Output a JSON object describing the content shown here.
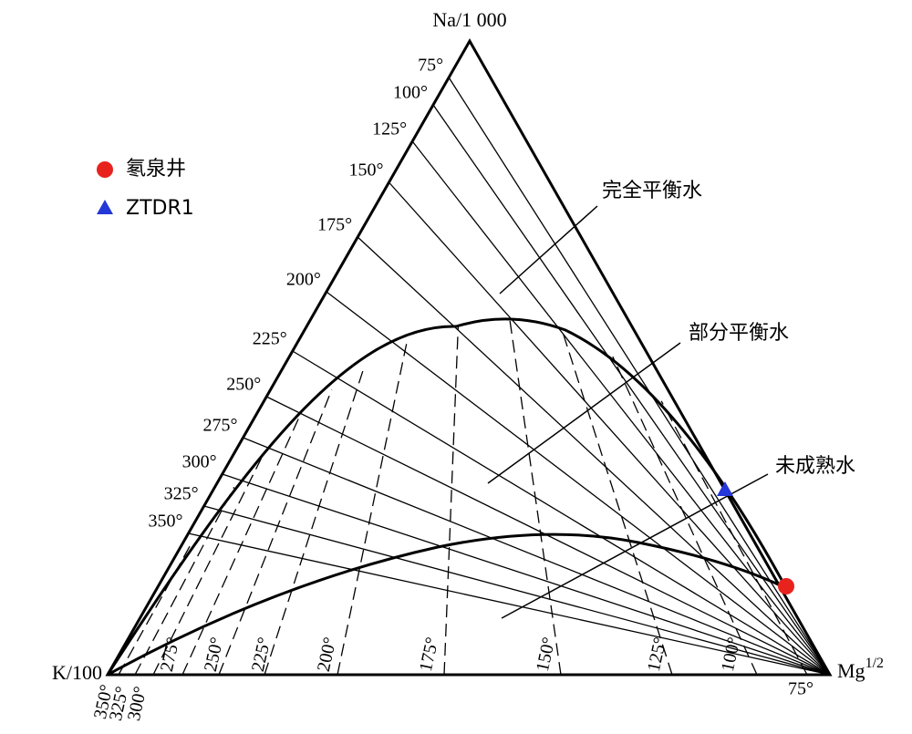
{
  "vertices": {
    "top": "Na/1 000",
    "left": "K/100",
    "right": {
      "base": "Mg",
      "sup": "1/2"
    }
  },
  "na_k_isotherms": [
    "75°",
    "100°",
    "125°",
    "150°",
    "175°",
    "200°",
    "225°",
    "250°",
    "275°",
    "300°",
    "325°",
    "350°"
  ],
  "k_mg_isotherms": [
    "350°",
    "325°",
    "300°",
    "275°",
    "250°",
    "225°",
    "200°",
    "175°",
    "150°",
    "125°",
    "100°",
    "75°"
  ],
  "regions": [
    "完全平衡水",
    "部分平衡水",
    "未成熟水"
  ],
  "legend": [
    {
      "label": "氡泉井",
      "color": "#e8231e"
    },
    {
      "label": "ZTDR1",
      "color": "#2437d8"
    }
  ]
}
